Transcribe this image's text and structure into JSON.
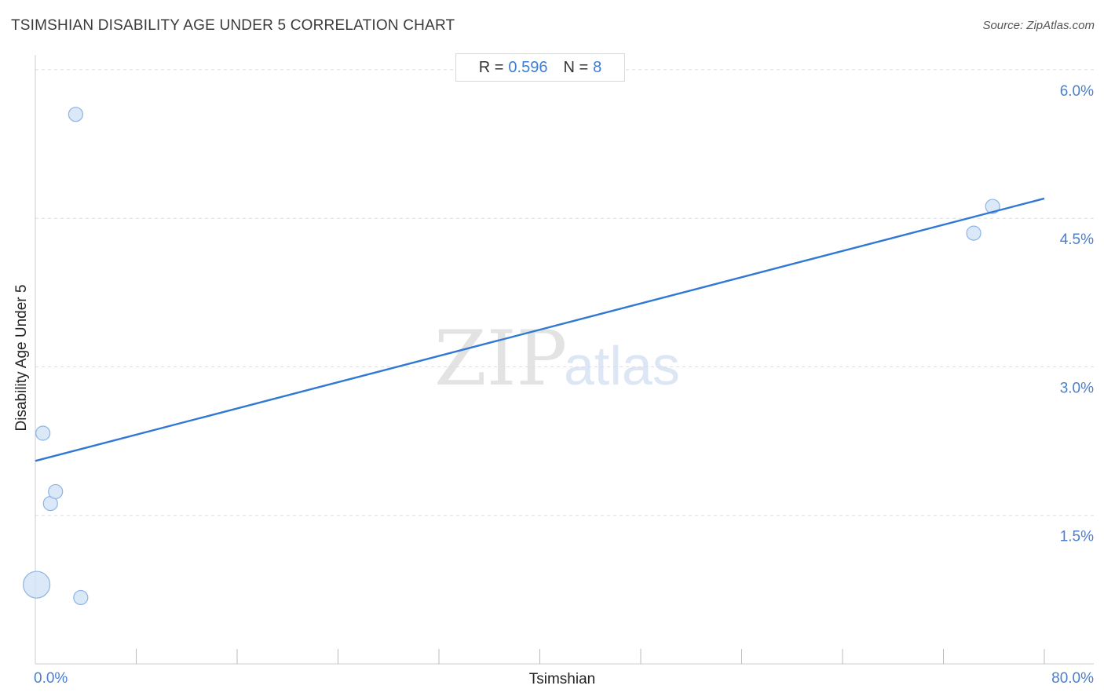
{
  "header": {
    "title": "TSIMSHIAN DISABILITY AGE UNDER 5 CORRELATION CHART",
    "source": "Source: ZipAtlas.com"
  },
  "stats": {
    "r_label": "R =",
    "r_value": "0.596",
    "n_label": "N =",
    "n_value": "8"
  },
  "watermark": {
    "zip": "ZIP",
    "atlas": "atlas"
  },
  "colors": {
    "accent": "#2f78d4",
    "point_fill": "#d4e4f7",
    "point_stroke": "#8db4e4",
    "tick_text": "#4a7fd0",
    "grid": "#dddddd"
  },
  "chart_data": {
    "type": "scatter",
    "title": "TSIMSHIAN DISABILITY AGE UNDER 5 CORRELATION CHART",
    "xlabel": "Tsimshian",
    "ylabel": "Disability Age Under 5",
    "xlim": [
      0,
      80
    ],
    "ylim": [
      0,
      6.15
    ],
    "x_tick_labels": [
      {
        "value": 0,
        "label": "0.0%"
      },
      {
        "value": 80,
        "label": "80.0%"
      }
    ],
    "y_tick_labels": [
      {
        "value": 1.5,
        "label": "1.5%"
      },
      {
        "value": 3.0,
        "label": "3.0%"
      },
      {
        "value": 4.5,
        "label": "4.5%"
      },
      {
        "value": 6.0,
        "label": "6.0%"
      }
    ],
    "grid": "horizontal-dashed",
    "points": [
      {
        "x": 0.1,
        "y": 0.8,
        "size": "large"
      },
      {
        "x": 0.6,
        "y": 2.33,
        "size": "small"
      },
      {
        "x": 1.2,
        "y": 1.62,
        "size": "small"
      },
      {
        "x": 1.6,
        "y": 1.74,
        "size": "small"
      },
      {
        "x": 3.2,
        "y": 5.55,
        "size": "small"
      },
      {
        "x": 3.6,
        "y": 0.67,
        "size": "small"
      },
      {
        "x": 74.4,
        "y": 4.35,
        "size": "small"
      },
      {
        "x": 75.9,
        "y": 4.62,
        "size": "small"
      }
    ],
    "trendline": {
      "x": [
        0,
        80
      ],
      "y": [
        2.05,
        4.7
      ]
    }
  }
}
